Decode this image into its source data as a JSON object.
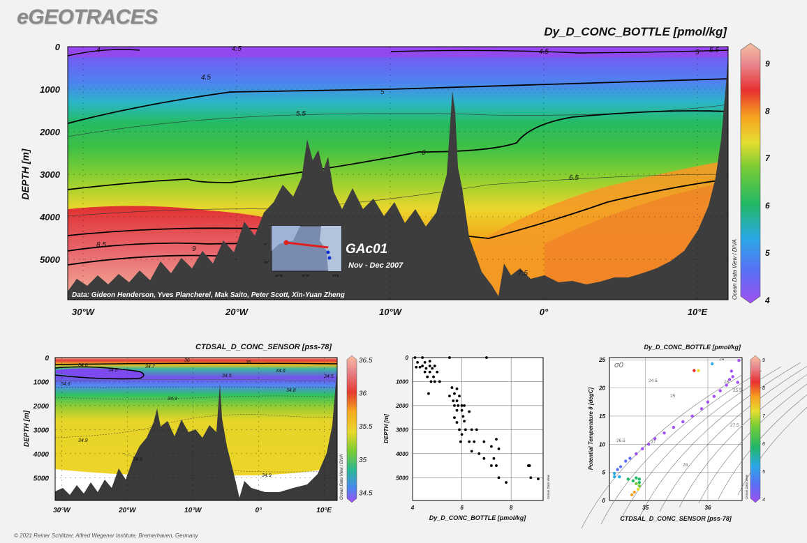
{
  "brand": "eGEOTRACES",
  "copyright": "© 2021 Reiner Schlitzer, Alfred Wegener Institute, Bremerhaven, Germany",
  "odv_label": "Ocean Data View / DIVA",
  "odv_label_short": "Ocean Data View",
  "inset": {
    "cruise": "GAc01",
    "dates": "Nov - Dec 2007",
    "lon_ticks": [
      "40°W",
      "10°W",
      "20°E"
    ],
    "lat_ticks": [
      "-0°",
      "-20°"
    ]
  },
  "data_credit": "Data: Gideon Henderson, Yves Plancherel, Mak Saito, Peter Scott, Xin-Yuan Zheng",
  "chart_data": [
    {
      "id": "main-section",
      "type": "heatmap",
      "title": "Dy_D_CONC_BOTTLE [pmol/kg]",
      "ylabel": "DEPTH [m]",
      "x_ticks": [
        "30°W",
        "20°W",
        "10°W",
        "0°",
        "10°E"
      ],
      "x_tick_values": [
        -30,
        -20,
        -10,
        0,
        10
      ],
      "xlim": [
        -31,
        12
      ],
      "y_ticks": [
        "0",
        "1000",
        "2000",
        "3000",
        "4000",
        "5000"
      ],
      "y_tick_values": [
        0,
        1000,
        2000,
        3000,
        4000,
        5000
      ],
      "ylim": [
        0,
        5950
      ],
      "colorbar": {
        "ticks": [
          "9",
          "8",
          "7",
          "6",
          "5",
          "4"
        ],
        "values": [
          9,
          8,
          7,
          6,
          5,
          4
        ],
        "range": [
          4,
          9.3
        ]
      },
      "contour_labels": [
        "4",
        "4.5",
        "4.5",
        "4.5",
        "5",
        "5",
        "5.5",
        "5.5",
        "6",
        "6.5",
        "8.5",
        "9",
        "7.5"
      ],
      "grid": true
    },
    {
      "id": "salinity-section",
      "type": "heatmap",
      "title": "CTDSAL_D_CONC_SENSOR [pss-78]",
      "ylabel": "DEPTH [m]",
      "x_ticks": [
        "30°W",
        "20°W",
        "10°W",
        "0°",
        "10°E"
      ],
      "x_tick_values": [
        -30,
        -20,
        -10,
        0,
        10
      ],
      "xlim": [
        -31,
        12
      ],
      "y_ticks": [
        "0",
        "1000",
        "2000",
        "3000",
        "4000",
        "5000"
      ],
      "y_tick_values": [
        0,
        1000,
        2000,
        3000,
        4000,
        5000
      ],
      "ylim": [
        0,
        5950
      ],
      "colorbar": {
        "ticks": [
          "36.5",
          "36",
          "35.5",
          "35",
          "34.5"
        ],
        "values": [
          36.5,
          36,
          35.5,
          35,
          34.5
        ],
        "range": [
          34.4,
          36.5
        ]
      },
      "contour_labels": [
        "36",
        "35",
        "34.6",
        "34.5",
        "34.7",
        "34.5",
        "34.6",
        "34.5",
        "34.6",
        "34.8",
        "34.9",
        "34.9",
        "34.9",
        "34.9"
      ],
      "grid": true
    },
    {
      "id": "profile-scatter",
      "type": "scatter",
      "title": "",
      "xlabel": "Dy_D_CONC_BOTTLE [pmol/kg]",
      "ylabel": "DEPTH [m]",
      "x_ticks": [
        "4",
        "6",
        "8"
      ],
      "x_tick_values": [
        4,
        6,
        8
      ],
      "xlim": [
        4,
        9.3
      ],
      "y_ticks": [
        "0",
        "1000",
        "2000",
        "3000",
        "4000",
        "5000"
      ],
      "y_tick_values": [
        0,
        1000,
        2000,
        3000,
        4000,
        5000
      ],
      "ylim": [
        0,
        5950
      ],
      "points": [
        [
          4.1,
          0
        ],
        [
          4.4,
          0
        ],
        [
          5.5,
          0
        ],
        [
          7.0,
          0
        ],
        [
          4.2,
          200
        ],
        [
          4.5,
          200
        ],
        [
          4.7,
          150
        ],
        [
          4.4,
          350
        ],
        [
          4.7,
          350
        ],
        [
          4.9,
          350
        ],
        [
          4.15,
          400
        ],
        [
          4.3,
          400
        ],
        [
          4.55,
          450
        ],
        [
          4.8,
          450
        ],
        [
          4.5,
          600
        ],
        [
          4.7,
          600
        ],
        [
          5.0,
          600
        ],
        [
          4.6,
          800
        ],
        [
          4.85,
          800
        ],
        [
          4.75,
          1000
        ],
        [
          4.9,
          1000
        ],
        [
          5.1,
          1000
        ],
        [
          4.65,
          1500
        ],
        [
          5.6,
          1250
        ],
        [
          5.8,
          1300
        ],
        [
          5.7,
          1500
        ],
        [
          5.5,
          1600
        ],
        [
          5.9,
          1600
        ],
        [
          5.65,
          1800
        ],
        [
          5.8,
          1800
        ],
        [
          5.7,
          2000
        ],
        [
          5.85,
          2000
        ],
        [
          6.0,
          2000
        ],
        [
          6.1,
          2000
        ],
        [
          5.8,
          2200
        ],
        [
          6.0,
          2200
        ],
        [
          6.3,
          2250
        ],
        [
          5.7,
          2500
        ],
        [
          6.05,
          2450
        ],
        [
          5.8,
          2700
        ],
        [
          6.1,
          2650
        ],
        [
          5.9,
          3000
        ],
        [
          6.15,
          3000
        ],
        [
          6.4,
          3000
        ],
        [
          6.6,
          3000
        ],
        [
          6.0,
          3200
        ],
        [
          6.3,
          3500
        ],
        [
          6.5,
          3500
        ],
        [
          5.95,
          3500
        ],
        [
          6.9,
          3500
        ],
        [
          7.4,
          3400
        ],
        [
          7.2,
          3700
        ],
        [
          6.4,
          3900
        ],
        [
          7.5,
          3800
        ],
        [
          6.7,
          4000
        ],
        [
          6.9,
          4200
        ],
        [
          7.3,
          4200
        ],
        [
          7.2,
          4500
        ],
        [
          7.4,
          4500
        ],
        [
          8.7,
          4500
        ],
        [
          8.75,
          4500
        ],
        [
          7.5,
          5000
        ],
        [
          8.8,
          5000
        ],
        [
          9.1,
          5050
        ],
        [
          7.8,
          5200
        ]
      ],
      "grid": true
    },
    {
      "id": "ts-diagram",
      "type": "scatter",
      "title": "Dy_D_CONC_BOTTLE [pmol/kg]",
      "xlabel": "CTDSAL_D_CONC_SENSOR [pss-78]",
      "ylabel": "Potential Temperature θ [degC]",
      "x_ticks": [
        "35",
        "36"
      ],
      "x_tick_values": [
        35,
        36
      ],
      "xlim": [
        34.42,
        36.55
      ],
      "y_ticks": [
        "0",
        "5",
        "10",
        "15",
        "20",
        "25"
      ],
      "y_tick_values": [
        0,
        5,
        10,
        15,
        20,
        25
      ],
      "ylim": [
        0,
        25.4
      ],
      "sigma_label": "σ0",
      "isopycnal_labels": [
        "24",
        "24.5",
        "25",
        "25.5",
        "26",
        "26.5",
        "27",
        "27.5",
        "28"
      ],
      "colorbar": {
        "ticks": [
          "9",
          "8",
          "7",
          "6",
          "5",
          "4"
        ],
        "values": [
          9,
          8,
          7,
          6,
          5,
          4
        ],
        "range": [
          4,
          9
        ]
      },
      "points": [
        [
          34.5,
          4.2,
          5.3
        ],
        [
          34.58,
          4.2,
          5.2
        ],
        [
          34.5,
          4.8,
          5.3
        ],
        [
          34.55,
          5.5,
          5.0
        ],
        [
          34.6,
          6,
          4.8
        ],
        [
          34.68,
          7,
          4.7
        ],
        [
          34.75,
          7.5,
          4.6
        ],
        [
          34.85,
          8.3,
          4.5
        ],
        [
          34.95,
          9.2,
          4.4
        ],
        [
          35.05,
          10,
          4.5
        ],
        [
          35.15,
          11,
          4.5
        ],
        [
          35.3,
          12,
          4.4
        ],
        [
          35.45,
          13,
          4.4
        ],
        [
          35.6,
          14,
          4.4
        ],
        [
          35.75,
          15,
          4.5
        ],
        [
          35.9,
          16.3,
          4.4
        ],
        [
          36.0,
          17.5,
          4.4
        ],
        [
          36.1,
          18.5,
          4.5
        ],
        [
          36.2,
          19.5,
          4.4
        ],
        [
          36.3,
          20.5,
          4.4
        ],
        [
          36.35,
          21.5,
          4.5
        ],
        [
          36.4,
          22,
          4.5
        ],
        [
          36.38,
          23,
          4.2
        ],
        [
          36.48,
          21,
          4.3
        ],
        [
          36.5,
          24.9,
          4.5
        ],
        [
          35.85,
          23.1,
          7.2
        ],
        [
          35.78,
          23.1,
          8.4
        ],
        [
          36.07,
          24.3,
          5.6
        ],
        [
          34.72,
          3.8,
          6.2
        ],
        [
          34.8,
          3.5,
          6.2
        ],
        [
          34.85,
          3,
          6.6
        ],
        [
          34.9,
          3.2,
          6.0
        ],
        [
          34.9,
          2.6,
          7.0
        ],
        [
          34.88,
          2,
          7.3
        ],
        [
          34.82,
          1.5,
          7.6
        ],
        [
          34.78,
          1,
          7.8
        ],
        [
          34.9,
          3.8,
          6.3
        ],
        [
          34.85,
          4,
          6.2
        ]
      ],
      "grid": true
    }
  ]
}
